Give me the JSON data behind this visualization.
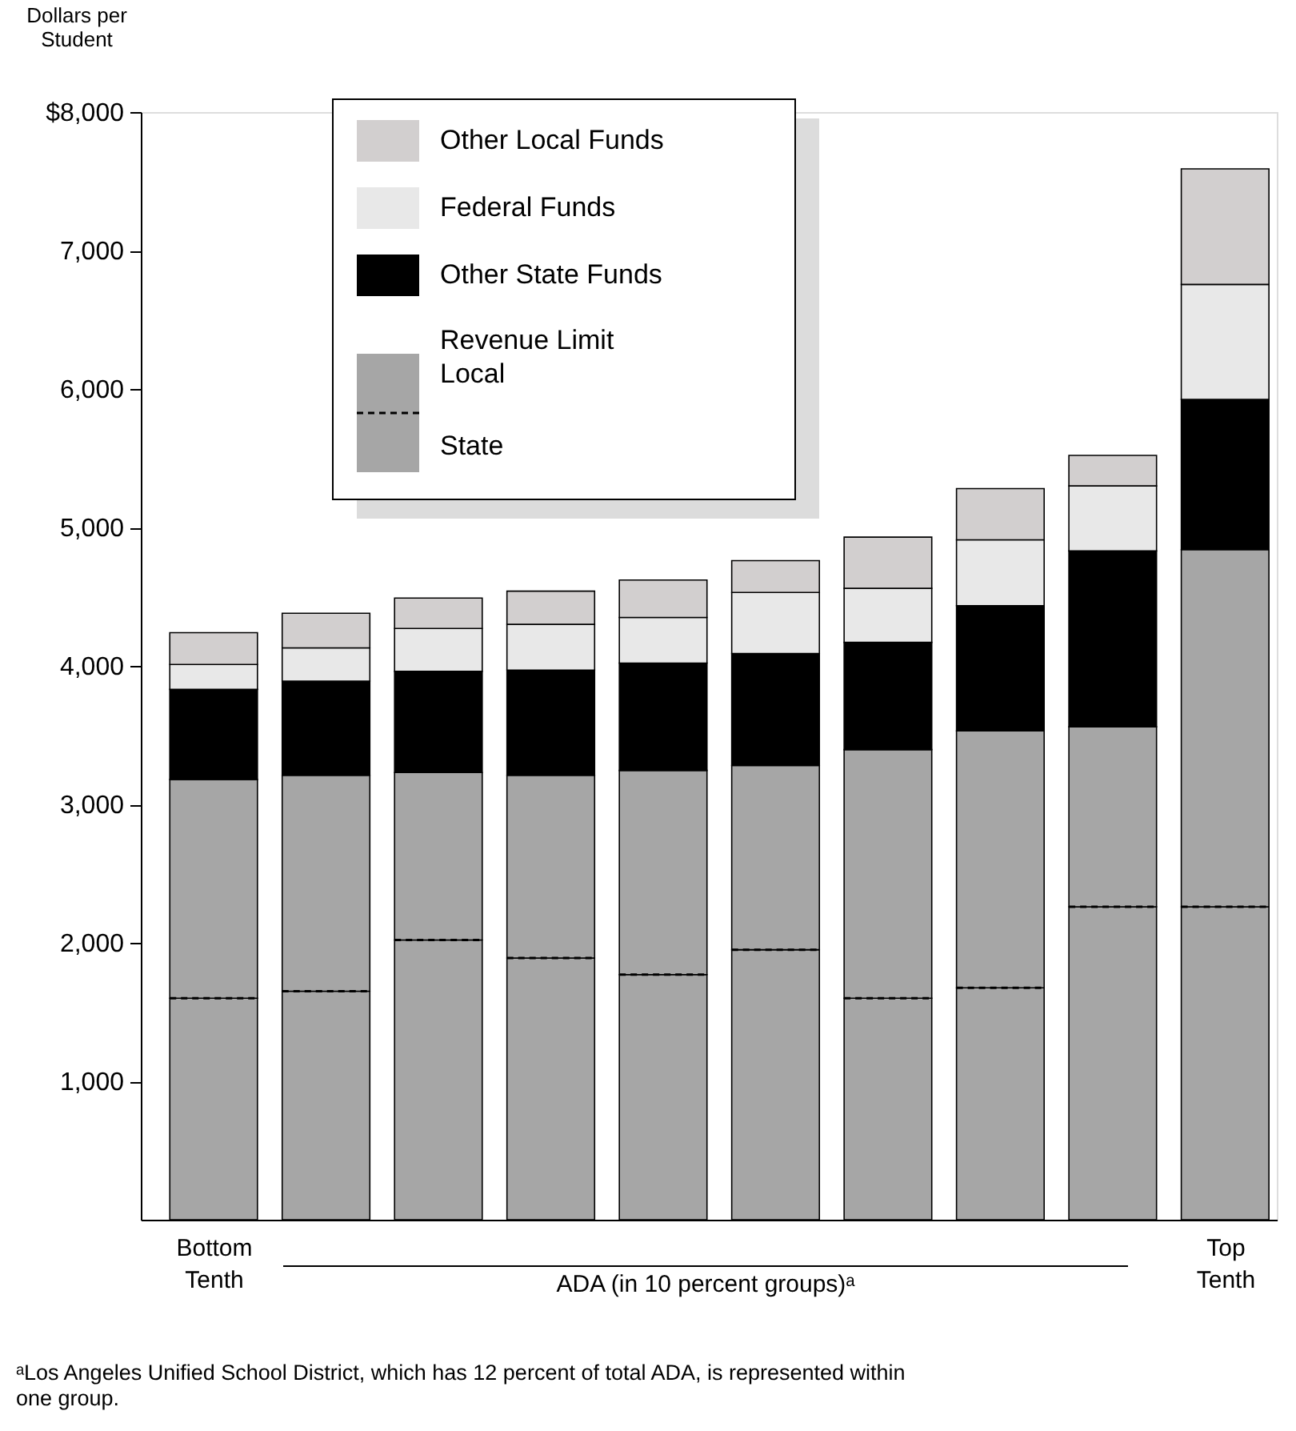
{
  "chart_data": {
    "type": "bar",
    "stacked": true,
    "categories": [
      "Bottom Tenth",
      null,
      null,
      null,
      null,
      null,
      null,
      null,
      null,
      "Top Tenth"
    ],
    "series": [
      {
        "name": "State",
        "color": "#a6a6a6",
        "values": [
          1600,
          1650,
          2020,
          1890,
          1770,
          1950,
          1600,
          1675,
          2260,
          2260
        ]
      },
      {
        "name": "Local",
        "color": "#a6a6a6",
        "values": [
          1580,
          1560,
          1210,
          1320,
          1475,
          1330,
          1795,
          1855,
          1300,
          2580
        ]
      },
      {
        "name": "Other State Funds",
        "color": "#000000",
        "values": [
          650,
          680,
          730,
          760,
          775,
          810,
          775,
          905,
          1270,
          1085
        ]
      },
      {
        "name": "Federal Funds",
        "color": "#e8e8e8",
        "values": [
          180,
          240,
          310,
          330,
          330,
          440,
          390,
          475,
          470,
          830
        ]
      },
      {
        "name": "Other Local Funds",
        "color": "#d2cfcf",
        "values": [
          230,
          250,
          220,
          240,
          270,
          230,
          370,
          370,
          220,
          835
        ]
      }
    ],
    "ylabel": "Dollars per Student",
    "xlabel": "ADA (in 10 percent groups)ᵃ",
    "ylim": [
      0,
      8000
    ],
    "yticks": [
      {
        "value": 1000,
        "label": "1,000"
      },
      {
        "value": 2000,
        "label": "2,000"
      },
      {
        "value": 3000,
        "label": "3,000"
      },
      {
        "value": 4000,
        "label": "4,000"
      },
      {
        "value": 5000,
        "label": "5,000"
      },
      {
        "value": 6000,
        "label": "6,000"
      },
      {
        "value": 7000,
        "label": "7,000"
      },
      {
        "value": 8000,
        "label": "$8,000"
      }
    ],
    "grid": false,
    "legend": "top left",
    "annotations": [
      "Revenue Limit",
      "ᵃLos Angeles Unified School District, which has 12 percent of total ADA, is represented within one group."
    ]
  }
}
